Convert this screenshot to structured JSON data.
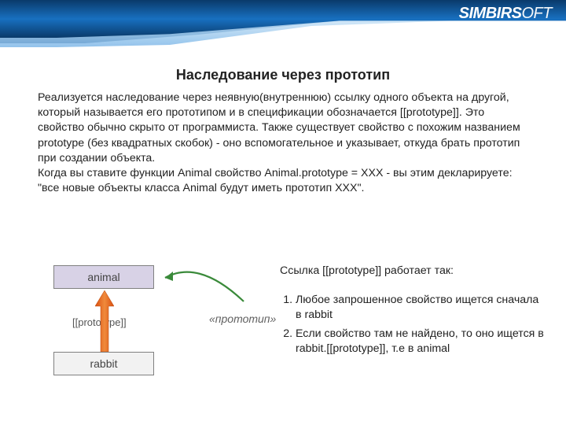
{
  "logo": {
    "part1": "S",
    "part2": "IMBIR",
    "part3": "S",
    "part4": "OFT"
  },
  "title": "Наследование через прототип",
  "body": "Реализуется наследование через неявную(внутреннюю) ссылку одного объекта на другой, который называется его прототипом и в спецификации обозначается [[prototype]]. Это свойство обычно скрыто от программиста. Также существует свойство с похожим названием prototype (без квадратных скобок) - оно вспомогательное и указывает, откуда брать прототип при создании объекта.\nКогда вы ставите функции Animal свойство Animal.prototype = XXX - вы этим декларируете: \"все новые объекты класса Animal будут иметь прототип XXX\".",
  "diagram": {
    "animal": "animal",
    "rabbit": "rabbit",
    "proto_label": "[[prototype]]",
    "proto_italic": "«прототип»",
    "arrow": {
      "color": "#e8641b",
      "width": 22,
      "length": 72
    },
    "curve": {
      "color": "#3a8a3a"
    },
    "box": {
      "animal_bg": "#d8d2e6",
      "rabbit_bg": "#f2f2f2",
      "border": "#808080"
    }
  },
  "right": {
    "intro": "Ссылка [[prototype]] работает так:",
    "items": [
      "Любое запрошенное свойство ищется сначала в rabbit",
      "Если свойство там не найдено, то оно ищется в rabbit.[[prototype]], т.е в animal"
    ]
  }
}
